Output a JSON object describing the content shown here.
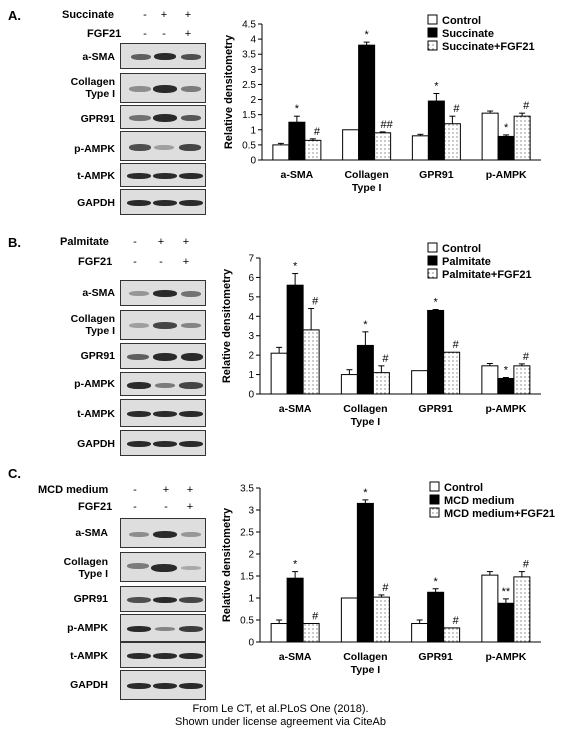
{
  "panels": [
    {
      "letter": "A.",
      "treatments": [
        {
          "label": "Succinate",
          "signs": [
            "-",
            "+",
            "+"
          ]
        },
        {
          "label": "FGF21",
          "signs": [
            "-",
            "-",
            "+"
          ]
        }
      ],
      "blots": [
        {
          "label": "a-SMA"
        },
        {
          "label": "Collagen Type I"
        },
        {
          "label": "GPR91"
        },
        {
          "label": "p-AMPK"
        },
        {
          "label": "t-AMPK"
        },
        {
          "label": "GAPDH"
        }
      ]
    },
    {
      "letter": "B.",
      "treatments": [
        {
          "label": "Palmitate",
          "signs": [
            "-",
            "+",
            "+"
          ]
        },
        {
          "label": "FGF21",
          "signs": [
            "-",
            "-",
            "+"
          ]
        }
      ],
      "blots": [
        {
          "label": "a-SMA"
        },
        {
          "label": "Collagen Type I"
        },
        {
          "label": "GPR91"
        },
        {
          "label": "p-AMPK"
        },
        {
          "label": "t-AMPK"
        },
        {
          "label": "GAPDH"
        }
      ]
    },
    {
      "letter": "C.",
      "treatments": [
        {
          "label": "MCD medium",
          "signs": [
            "-",
            "+",
            "+"
          ]
        },
        {
          "label": "FGF21",
          "signs": [
            "-",
            "-",
            "+"
          ]
        }
      ],
      "blots": [
        {
          "label": "a-SMA"
        },
        {
          "label": "Collagen Type I"
        },
        {
          "label": "GPR91"
        },
        {
          "label": "p-AMPK"
        },
        {
          "label": "t-AMPK"
        },
        {
          "label": "GAPDH"
        }
      ]
    }
  ],
  "chart_data": [
    {
      "type": "bar",
      "ylabel": "Relative densitometry",
      "ylim": [
        0,
        4.5
      ],
      "yticks": [
        "0",
        "0.5",
        "1",
        "1.5",
        "2",
        "2.5",
        "3",
        "3.5",
        "4",
        "4.5"
      ],
      "ytick_values": [
        0,
        0.5,
        1,
        1.5,
        2,
        2.5,
        3,
        3.5,
        4,
        4.5
      ],
      "categories": [
        "a-SMA",
        "Collagen Type I",
        "GPR91",
        "p-AMPK"
      ],
      "legend_position": "top-right",
      "series": [
        {
          "name": "Control",
          "values": [
            0.5,
            1.0,
            0.8,
            1.55
          ],
          "errors": [
            0.05,
            0,
            0.05,
            0.07
          ]
        },
        {
          "name": "Succinate",
          "values": [
            1.25,
            3.8,
            1.95,
            0.78
          ],
          "errors": [
            0.2,
            0.1,
            0.25,
            0.05
          ]
        },
        {
          "name": "Succinate+FGF21",
          "values": [
            0.65,
            0.9,
            1.2,
            1.45
          ],
          "errors": [
            0.05,
            0.03,
            0.25,
            0.1
          ]
        }
      ],
      "annotations": [
        [
          "",
          "*",
          "#"
        ],
        [
          "",
          "*",
          "##"
        ],
        [
          "",
          "*",
          "#"
        ],
        [
          "",
          "*",
          "#"
        ]
      ]
    },
    {
      "type": "bar",
      "ylabel": "Relative densitometry",
      "ylim": [
        0,
        7
      ],
      "yticks": [
        "0",
        "1",
        "2",
        "3",
        "4",
        "5",
        "6",
        "7"
      ],
      "ytick_values": [
        0,
        1,
        2,
        3,
        4,
        5,
        6,
        7
      ],
      "categories": [
        "a-SMA",
        "Collagen Type I",
        "GPR91",
        "p-AMPK"
      ],
      "legend_position": "top-right",
      "series": [
        {
          "name": "Control",
          "values": [
            2.1,
            1.0,
            1.2,
            1.45
          ],
          "errors": [
            0.3,
            0.25,
            0,
            0.12
          ]
        },
        {
          "name": "Palmitate",
          "values": [
            5.6,
            2.5,
            4.3,
            0.8
          ],
          "errors": [
            0.6,
            0.7,
            0.05,
            0.05
          ]
        },
        {
          "name": "Palmitate+FGF21",
          "values": [
            3.3,
            1.1,
            2.15,
            1.45
          ],
          "errors": [
            1.1,
            0.35,
            0,
            0.1
          ]
        }
      ],
      "annotations": [
        [
          "",
          "*",
          "#"
        ],
        [
          "",
          "*",
          "#"
        ],
        [
          "",
          "*",
          "#"
        ],
        [
          "",
          "*",
          "#"
        ]
      ]
    },
    {
      "type": "bar",
      "ylabel": "Relative densitometry",
      "ylim": [
        0,
        3.5
      ],
      "yticks": [
        "0",
        "0.5",
        "1",
        "1.5",
        "2",
        "2.5",
        "3",
        "3.5"
      ],
      "ytick_values": [
        0,
        0.5,
        1,
        1.5,
        2,
        2.5,
        3,
        3.5
      ],
      "categories": [
        "a-SMA",
        "Collagen Type I",
        "GPR91",
        "p-AMPK"
      ],
      "legend_position": "top-right",
      "series": [
        {
          "name": "Control",
          "values": [
            0.42,
            1.0,
            0.42,
            1.52
          ],
          "errors": [
            0.08,
            0,
            0.08,
            0.08
          ]
        },
        {
          "name": "MCD medium",
          "values": [
            1.45,
            3.15,
            1.13,
            0.88
          ],
          "errors": [
            0.15,
            0.08,
            0.08,
            0.1
          ]
        },
        {
          "name": "MCD medium+FGF21",
          "values": [
            0.42,
            1.02,
            0.32,
            1.48
          ],
          "errors": [
            0,
            0.05,
            0,
            0.12
          ]
        }
      ],
      "annotations": [
        [
          "",
          "*",
          "#"
        ],
        [
          "",
          "*",
          "#"
        ],
        [
          "",
          "*",
          "#"
        ],
        [
          "",
          "**",
          "#"
        ]
      ]
    }
  ],
  "credit": {
    "line1": "From Le CT, et al.PLoS One (2018).",
    "line2": "Shown under license agreement via CiteAb"
  }
}
